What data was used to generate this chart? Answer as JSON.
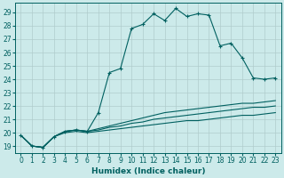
{
  "xlabel": "Humidex (Indice chaleur)",
  "bg_color": "#cceaea",
  "grid_color": "#b0cccc",
  "line_color": "#006060",
  "xlim": [
    -0.5,
    23.5
  ],
  "ylim": [
    18.5,
    29.7
  ],
  "xticks": [
    0,
    1,
    2,
    3,
    4,
    5,
    6,
    7,
    8,
    9,
    10,
    11,
    12,
    13,
    14,
    15,
    16,
    17,
    18,
    19,
    20,
    21,
    22,
    23
  ],
  "yticks": [
    19,
    20,
    21,
    22,
    23,
    24,
    25,
    26,
    27,
    28,
    29
  ],
  "line_main_x": [
    0,
    1,
    2,
    3,
    4,
    5,
    6,
    7,
    8,
    9,
    10,
    11,
    12,
    13,
    14,
    15,
    16,
    17,
    18,
    19,
    20,
    21,
    22,
    23
  ],
  "line_main_y": [
    19.8,
    19.0,
    18.9,
    19.7,
    20.1,
    20.2,
    20.1,
    21.5,
    24.5,
    24.8,
    27.8,
    28.1,
    28.9,
    28.4,
    29.3,
    28.7,
    28.9,
    28.8,
    26.5,
    26.7,
    25.6,
    24.1,
    24.0,
    24.1
  ],
  "fan_lines": [
    {
      "x": [
        0,
        1,
        2,
        3,
        4,
        5,
        6,
        7,
        8,
        9,
        10,
        11,
        12,
        13,
        14,
        15,
        16,
        17,
        18,
        19,
        20,
        21,
        22,
        23
      ],
      "y": [
        19.8,
        19.0,
        18.9,
        19.7,
        20.1,
        20.2,
        20.1,
        20.3,
        20.5,
        20.7,
        20.9,
        21.1,
        21.3,
        21.5,
        21.6,
        21.7,
        21.8,
        21.9,
        22.0,
        22.1,
        22.2,
        22.2,
        22.3,
        22.4
      ]
    },
    {
      "x": [
        0,
        1,
        2,
        3,
        4,
        5,
        6,
        7,
        8,
        9,
        10,
        11,
        12,
        13,
        14,
        15,
        16,
        17,
        18,
        19,
        20,
        21,
        22,
        23
      ],
      "y": [
        19.8,
        19.0,
        18.9,
        19.7,
        20.1,
        20.2,
        20.1,
        20.2,
        20.4,
        20.5,
        20.7,
        20.8,
        21.0,
        21.1,
        21.2,
        21.3,
        21.4,
        21.5,
        21.6,
        21.7,
        21.8,
        21.9,
        21.9,
        22.0
      ]
    },
    {
      "x": [
        0,
        1,
        2,
        3,
        4,
        5,
        6,
        7,
        8,
        9,
        10,
        11,
        12,
        13,
        14,
        15,
        16,
        17,
        18,
        19,
        20,
        21,
        22,
        23
      ],
      "y": [
        19.8,
        19.0,
        18.9,
        19.7,
        20.0,
        20.1,
        20.0,
        20.1,
        20.2,
        20.3,
        20.4,
        20.5,
        20.6,
        20.7,
        20.8,
        20.9,
        20.9,
        21.0,
        21.1,
        21.2,
        21.3,
        21.3,
        21.4,
        21.5
      ]
    }
  ]
}
